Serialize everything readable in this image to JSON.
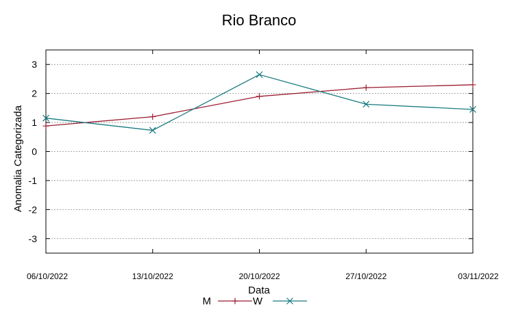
{
  "chart_data": {
    "type": "line",
    "title": "Rio Branco",
    "xlabel": "Data",
    "ylabel": "Anomalia Categorizada",
    "x": [
      "06/10/2022",
      "13/10/2022",
      "20/10/2022",
      "27/10/2022",
      "03/11/2022"
    ],
    "ylim": [
      -3.5,
      3.5
    ],
    "yticks": [
      -3,
      -2,
      -1,
      0,
      1,
      2,
      3
    ],
    "ytick_labels": [
      "-3",
      "-2",
      "-1",
      "0",
      "1",
      "2",
      "3"
    ],
    "grid": true,
    "legend_position": "bottom",
    "series": [
      {
        "name": "M",
        "color": "#9b1b30",
        "marker": "plus",
        "values": [
          0.88,
          1.2,
          1.9,
          2.2,
          2.3
        ]
      },
      {
        "name": "W",
        "color": "#17797f",
        "marker": "cross",
        "values": [
          1.15,
          0.73,
          2.65,
          1.63,
          1.45
        ]
      }
    ]
  }
}
